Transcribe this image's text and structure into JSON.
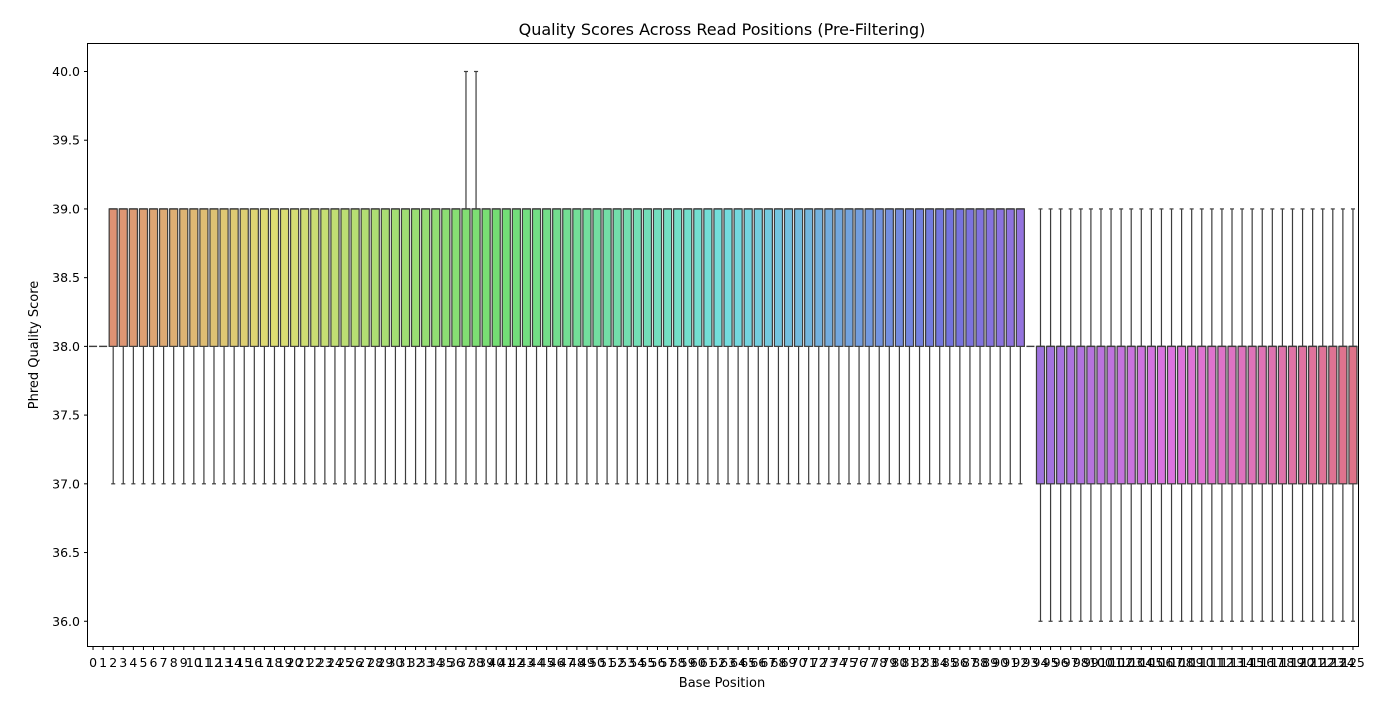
{
  "chart_data": {
    "type": "box",
    "title": "Quality Scores Across Read Positions (Pre-Filtering)",
    "xlabel": "Base Position",
    "ylabel": "Phred Quality Score",
    "ylim": [
      35.82,
      40.2
    ],
    "yticks": [
      "36.0",
      "36.5",
      "37.0",
      "37.5",
      "38.0",
      "38.5",
      "39.0",
      "39.5",
      "40.0"
    ],
    "grid": false,
    "x": [
      0,
      1,
      2,
      3,
      4,
      5,
      6,
      7,
      8,
      9,
      10,
      11,
      12,
      13,
      14,
      15,
      16,
      17,
      18,
      19,
      20,
      21,
      22,
      23,
      24,
      25,
      26,
      27,
      28,
      29,
      30,
      31,
      32,
      33,
      34,
      35,
      36,
      37,
      38,
      39,
      40,
      41,
      42,
      43,
      44,
      45,
      46,
      47,
      48,
      49,
      50,
      51,
      52,
      53,
      54,
      55,
      56,
      57,
      58,
      59,
      60,
      61,
      62,
      63,
      64,
      65,
      66,
      67,
      68,
      69,
      70,
      71,
      72,
      73,
      74,
      75,
      76,
      77,
      78,
      79,
      80,
      81,
      82,
      83,
      84,
      85,
      86,
      87,
      88,
      89,
      90,
      91,
      92,
      93,
      94,
      95,
      96,
      97,
      98,
      99,
      100,
      101,
      102,
      103,
      104,
      105,
      106,
      107,
      108,
      109,
      110,
      111,
      112,
      113,
      114,
      115,
      116,
      117,
      118,
      119,
      120,
      121,
      122,
      123,
      124,
      125
    ],
    "box_groups": [
      {
        "positions": "0-1",
        "min": 38,
        "q1": 38,
        "median": 38,
        "q3": 38,
        "max": 38
      },
      {
        "positions": "2-36",
        "min": 37,
        "q1": 38,
        "median": 39,
        "q3": 39,
        "max": 39
      },
      {
        "positions": "37-38",
        "min": 37,
        "q1": 38,
        "median": 39,
        "q3": 39,
        "max": 40
      },
      {
        "positions": "39-92",
        "min": 37,
        "q1": 38,
        "median": 39,
        "q3": 39,
        "max": 39
      },
      {
        "positions": "93",
        "min": 38,
        "q1": 38,
        "median": 38,
        "q3": 38,
        "max": 38
      },
      {
        "positions": "94-125",
        "min": 36,
        "q1": 37,
        "median": 38,
        "q3": 38,
        "max": 39
      }
    ],
    "palette": "husl"
  }
}
